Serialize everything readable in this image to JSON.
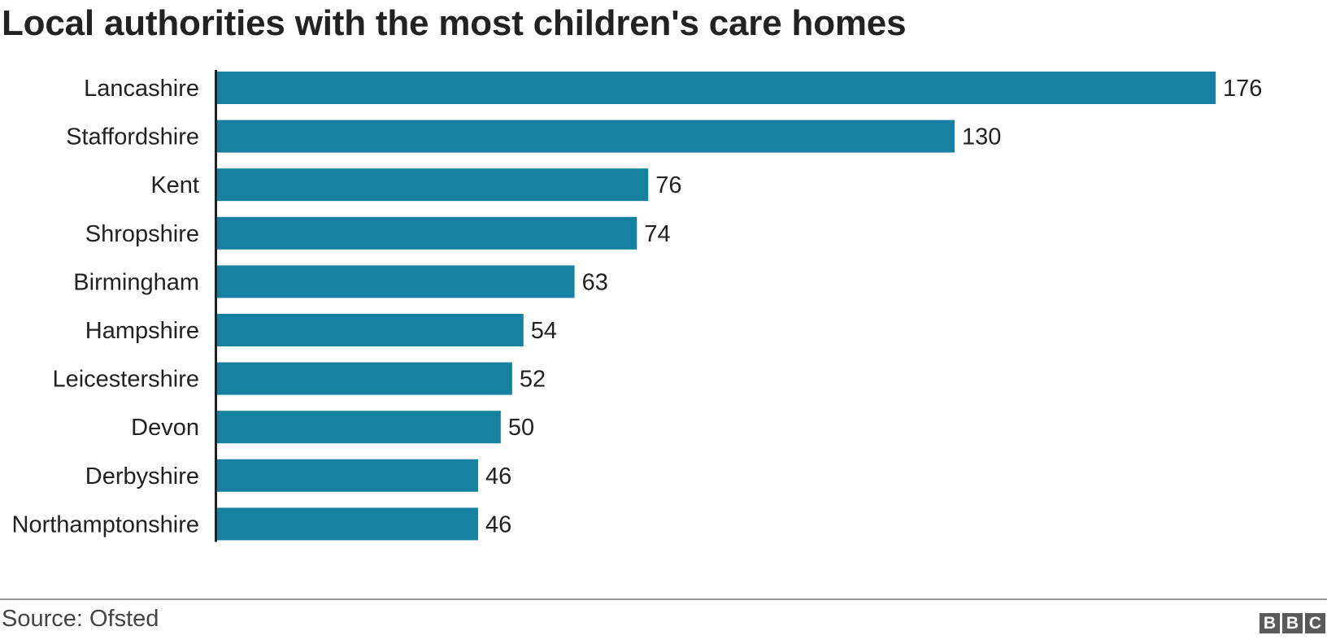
{
  "chart_data": {
    "type": "bar",
    "orientation": "horizontal",
    "title": "Local authorities with the most children's care homes",
    "categories": [
      "Lancashire",
      "Staffordshire",
      "Kent",
      "Shropshire",
      "Birmingham",
      "Hampshire",
      "Leicestershire",
      "Devon",
      "Derbyshire",
      "Northamptonshire"
    ],
    "values": [
      176,
      130,
      76,
      74,
      63,
      54,
      52,
      50,
      46,
      46
    ],
    "xlabel": "",
    "ylabel": "",
    "xlim": [
      0,
      176
    ],
    "grid": false,
    "legend": "none",
    "data_labels": true
  },
  "colors": {
    "bar": "#1580a0",
    "axis": "#222222",
    "text": "#222222",
    "footer_rule": "#9a9a9a",
    "logo": "#5a5a5a"
  },
  "footer": {
    "source": "Source: Ofsted",
    "logo_letters": [
      "B",
      "B",
      "C"
    ]
  }
}
